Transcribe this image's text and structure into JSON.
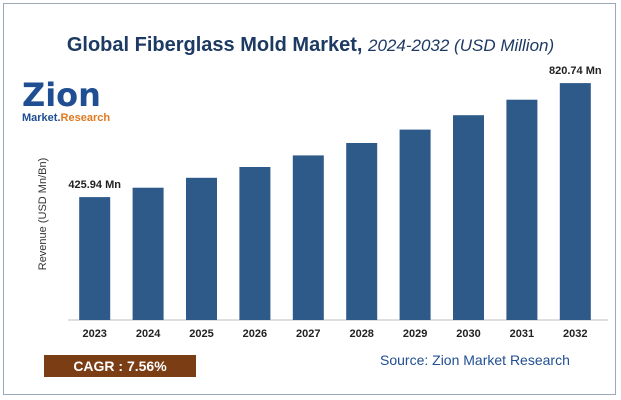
{
  "title": {
    "main": "Global Fiberglass Mold Market,",
    "sub": "2024-2032 (USD Million)"
  },
  "logo": {
    "line1": "Zion",
    "line2a": "Market.",
    "line2b": "Research"
  },
  "chart_data": {
    "type": "bar",
    "categories": [
      "2023",
      "2024",
      "2025",
      "2026",
      "2027",
      "2028",
      "2029",
      "2030",
      "2031",
      "2032"
    ],
    "values": [
      425.94,
      458.2,
      492.8,
      530.1,
      570.2,
      613.3,
      659.7,
      709.6,
      763.3,
      820.74
    ],
    "data_labels": {
      "first": "425.94 Mn",
      "last": "820.74 Mn"
    },
    "ylabel": "Revenue (USD Mn/Bn)",
    "xlabel": "",
    "ylim": [
      0,
      880
    ],
    "grid": false,
    "bar_color": "#2e5a8a"
  },
  "footer": {
    "cagr": "CAGR :  7.56%",
    "source": "Source: Zion Market Research"
  }
}
